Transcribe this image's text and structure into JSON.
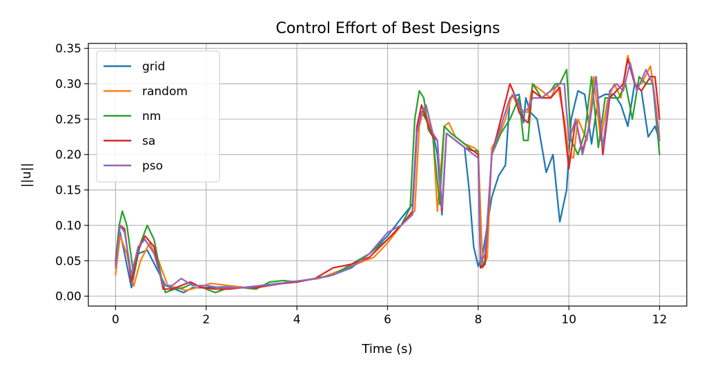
{
  "chart_data": {
    "type": "line",
    "title": "Control Effort of Best Designs",
    "xlabel": "Time (s)",
    "ylabel": "||u||",
    "xlim": [
      -0.6,
      12.6
    ],
    "ylim": [
      -0.014,
      0.357
    ],
    "xticks": [
      0,
      2,
      4,
      6,
      8,
      10,
      12
    ],
    "xtick_labels": [
      "0",
      "2",
      "4",
      "6",
      "8",
      "10",
      "12"
    ],
    "yticks": [
      0.0,
      0.05,
      0.1,
      0.15,
      0.2,
      0.25,
      0.3,
      0.35
    ],
    "ytick_labels": [
      "0.00",
      "0.05",
      "0.10",
      "0.15",
      "0.20",
      "0.25",
      "0.30",
      "0.35"
    ],
    "grid": true,
    "legend_position": "top-left",
    "series": [
      {
        "name": "grid",
        "color": "#1f77b4",
        "x": [
          0,
          0.1,
          0.2,
          0.35,
          0.5,
          0.7,
          0.9,
          1.1,
          1.3,
          1.5,
          1.7,
          2.0,
          2.4,
          2.8,
          3.2,
          3.6,
          4.0,
          4.4,
          4.8,
          5.2,
          5.6,
          6.0,
          6.3,
          6.55,
          6.65,
          6.75,
          6.9,
          7.0,
          7.1,
          7.2,
          7.3,
          7.5,
          7.7,
          7.8,
          7.9,
          8.0,
          8.1,
          8.2,
          8.3,
          8.45,
          8.6,
          8.7,
          8.9,
          9.0,
          9.05,
          9.15,
          9.3,
          9.5,
          9.65,
          9.8,
          9.95,
          10.05,
          10.2,
          10.35,
          10.5,
          10.65,
          10.8,
          11.0,
          11.15,
          11.3,
          11.45,
          11.6,
          11.75,
          11.9,
          12.0
        ],
        "y": [
          0.04,
          0.09,
          0.06,
          0.012,
          0.06,
          0.065,
          0.04,
          0.015,
          0.01,
          0.005,
          0.012,
          0.012,
          0.013,
          0.012,
          0.015,
          0.018,
          0.02,
          0.025,
          0.03,
          0.04,
          0.06,
          0.085,
          0.11,
          0.13,
          0.24,
          0.26,
          0.245,
          0.23,
          0.2,
          0.115,
          0.23,
          0.22,
          0.21,
          0.15,
          0.07,
          0.042,
          0.06,
          0.1,
          0.14,
          0.17,
          0.185,
          0.28,
          0.285,
          0.245,
          0.28,
          0.26,
          0.25,
          0.175,
          0.2,
          0.105,
          0.15,
          0.25,
          0.29,
          0.285,
          0.215,
          0.28,
          0.285,
          0.285,
          0.27,
          0.24,
          0.3,
          0.29,
          0.225,
          0.24,
          0.22
        ]
      },
      {
        "name": "random",
        "color": "#ff7f0e",
        "x": [
          0,
          0.1,
          0.25,
          0.4,
          0.55,
          0.75,
          0.95,
          1.15,
          1.35,
          1.55,
          1.8,
          2.1,
          2.5,
          2.9,
          3.3,
          3.7,
          4.1,
          4.5,
          4.9,
          5.3,
          5.7,
          6.0,
          6.3,
          6.6,
          6.7,
          6.8,
          7.0,
          7.1,
          7.25,
          7.35,
          7.5,
          7.7,
          7.9,
          8.0,
          8.1,
          8.2,
          8.3,
          8.45,
          8.6,
          8.75,
          8.9,
          9.0,
          9.1,
          9.2,
          9.4,
          9.6,
          9.75,
          9.9,
          10.0,
          10.1,
          10.2,
          10.4,
          10.55,
          10.7,
          10.85,
          11.0,
          11.15,
          11.3,
          11.45,
          11.6,
          11.8,
          11.9,
          12.0
        ],
        "y": [
          0.03,
          0.085,
          0.06,
          0.014,
          0.05,
          0.075,
          0.05,
          0.015,
          0.012,
          0.008,
          0.012,
          0.018,
          0.015,
          0.012,
          0.015,
          0.018,
          0.022,
          0.025,
          0.035,
          0.045,
          0.055,
          0.075,
          0.1,
          0.12,
          0.24,
          0.265,
          0.23,
          0.12,
          0.24,
          0.245,
          0.225,
          0.215,
          0.21,
          0.205,
          0.04,
          0.055,
          0.21,
          0.225,
          0.25,
          0.285,
          0.265,
          0.26,
          0.26,
          0.3,
          0.29,
          0.28,
          0.3,
          0.25,
          0.2,
          0.195,
          0.25,
          0.22,
          0.31,
          0.22,
          0.275,
          0.3,
          0.28,
          0.34,
          0.3,
          0.3,
          0.325,
          0.28,
          0.225
        ]
      },
      {
        "name": "nm",
        "color": "#2ca02c",
        "x": [
          0,
          0.08,
          0.15,
          0.25,
          0.4,
          0.55,
          0.7,
          0.85,
          1.0,
          1.1,
          1.3,
          1.5,
          1.7,
          2.0,
          2.2,
          2.5,
          2.8,
          3.1,
          3.4,
          3.7,
          4.0,
          4.4,
          4.8,
          5.2,
          5.6,
          6.0,
          6.3,
          6.5,
          6.6,
          6.7,
          6.8,
          6.9,
          7.0,
          7.15,
          7.25,
          7.4,
          7.6,
          7.8,
          7.9,
          8.0,
          8.05,
          8.15,
          8.3,
          8.5,
          8.7,
          8.9,
          9.0,
          9.1,
          9.2,
          9.4,
          9.6,
          9.7,
          9.8,
          9.95,
          10.05,
          10.2,
          10.35,
          10.5,
          10.65,
          10.8,
          10.95,
          11.1,
          11.25,
          11.4,
          11.55,
          11.7,
          11.85,
          12.0
        ],
        "y": [
          0.05,
          0.1,
          0.12,
          0.1,
          0.03,
          0.075,
          0.1,
          0.08,
          0.03,
          0.005,
          0.01,
          0.012,
          0.018,
          0.01,
          0.005,
          0.012,
          0.012,
          0.01,
          0.02,
          0.022,
          0.02,
          0.025,
          0.03,
          0.045,
          0.06,
          0.08,
          0.1,
          0.125,
          0.25,
          0.29,
          0.28,
          0.235,
          0.225,
          0.13,
          0.24,
          0.23,
          0.22,
          0.21,
          0.205,
          0.205,
          0.04,
          0.05,
          0.2,
          0.23,
          0.25,
          0.28,
          0.22,
          0.22,
          0.3,
          0.28,
          0.29,
          0.3,
          0.3,
          0.32,
          0.22,
          0.2,
          0.23,
          0.31,
          0.21,
          0.28,
          0.28,
          0.28,
          0.3,
          0.25,
          0.31,
          0.3,
          0.3,
          0.2
        ]
      },
      {
        "name": "sa",
        "color": "#d62728",
        "x": [
          0,
          0.1,
          0.2,
          0.35,
          0.5,
          0.65,
          0.85,
          1.05,
          1.25,
          1.45,
          1.65,
          1.9,
          2.2,
          2.5,
          2.8,
          3.1,
          3.4,
          3.7,
          4.0,
          4.4,
          4.8,
          5.2,
          5.6,
          6.0,
          6.3,
          6.55,
          6.65,
          6.75,
          6.85,
          7.0,
          7.1,
          7.2,
          7.3,
          7.5,
          7.7,
          7.9,
          8.0,
          8.05,
          8.15,
          8.3,
          8.5,
          8.7,
          8.8,
          8.9,
          9.0,
          9.1,
          9.2,
          9.4,
          9.6,
          9.8,
          9.9,
          10.0,
          10.15,
          10.3,
          10.45,
          10.6,
          10.75,
          10.9,
          11.05,
          11.2,
          11.3,
          11.45,
          11.6,
          11.8,
          11.9,
          12.0
        ],
        "y": [
          0.045,
          0.1,
          0.095,
          0.02,
          0.065,
          0.085,
          0.07,
          0.01,
          0.01,
          0.015,
          0.02,
          0.012,
          0.01,
          0.01,
          0.012,
          0.012,
          0.015,
          0.018,
          0.02,
          0.025,
          0.04,
          0.045,
          0.055,
          0.08,
          0.1,
          0.12,
          0.24,
          0.27,
          0.25,
          0.225,
          0.22,
          0.12,
          0.23,
          0.22,
          0.21,
          0.205,
          0.2,
          0.04,
          0.045,
          0.2,
          0.25,
          0.3,
          0.285,
          0.26,
          0.25,
          0.245,
          0.29,
          0.28,
          0.28,
          0.295,
          0.24,
          0.18,
          0.25,
          0.205,
          0.24,
          0.31,
          0.2,
          0.28,
          0.29,
          0.3,
          0.335,
          0.3,
          0.29,
          0.31,
          0.31,
          0.25
        ]
      },
      {
        "name": "pso",
        "color": "#9467bd",
        "x": [
          0,
          0.1,
          0.2,
          0.35,
          0.5,
          0.65,
          0.85,
          1.05,
          1.25,
          1.45,
          1.7,
          2.0,
          2.3,
          2.6,
          2.9,
          3.2,
          3.5,
          3.8,
          4.1,
          4.4,
          4.7,
          5.0,
          5.3,
          5.6,
          6.0,
          6.3,
          6.55,
          6.65,
          6.75,
          6.85,
          7.0,
          7.1,
          7.2,
          7.3,
          7.5,
          7.7,
          7.9,
          8.0,
          8.05,
          8.15,
          8.3,
          8.5,
          8.7,
          8.8,
          8.9,
          9.0,
          9.1,
          9.2,
          9.4,
          9.6,
          9.8,
          9.9,
          10.0,
          10.15,
          10.3,
          10.45,
          10.6,
          10.75,
          10.9,
          11.05,
          11.2,
          11.35,
          11.5,
          11.7,
          11.85,
          12.0
        ],
        "y": [
          0.04,
          0.1,
          0.09,
          0.03,
          0.07,
          0.08,
          0.06,
          0.015,
          0.015,
          0.025,
          0.015,
          0.015,
          0.012,
          0.012,
          0.012,
          0.015,
          0.016,
          0.02,
          0.022,
          0.025,
          0.028,
          0.035,
          0.045,
          0.06,
          0.09,
          0.1,
          0.115,
          0.23,
          0.26,
          0.27,
          0.23,
          0.22,
          0.125,
          0.23,
          0.22,
          0.21,
          0.2,
          0.195,
          0.045,
          0.06,
          0.2,
          0.24,
          0.28,
          0.285,
          0.27,
          0.26,
          0.265,
          0.28,
          0.28,
          0.29,
          0.3,
          0.3,
          0.22,
          0.25,
          0.2,
          0.24,
          0.31,
          0.21,
          0.29,
          0.3,
          0.29,
          0.33,
          0.29,
          0.32,
          0.3,
          0.22
        ]
      }
    ]
  }
}
